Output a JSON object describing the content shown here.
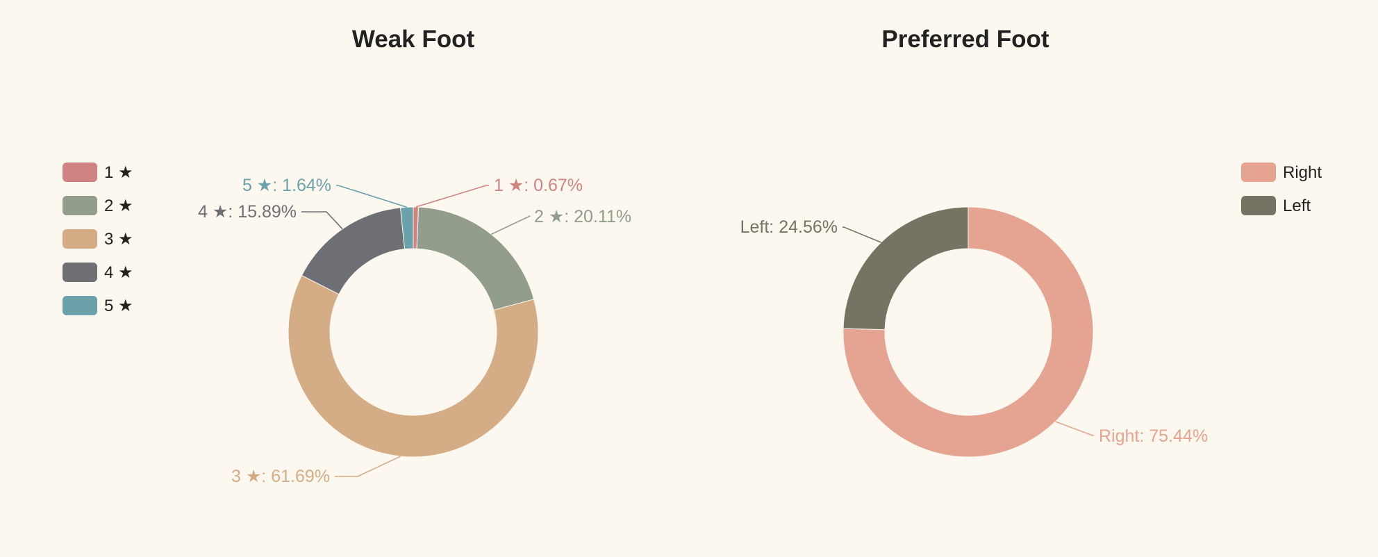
{
  "chart_data": [
    {
      "type": "pie",
      "title": "Weak Foot",
      "legend_position": "left",
      "categories": [
        "1 ★",
        "2 ★",
        "3 ★",
        "4 ★",
        "5 ★"
      ],
      "values": [
        0.67,
        20.11,
        61.69,
        15.89,
        1.64
      ],
      "unit": "%",
      "colors": [
        "#d18282",
        "#939d8b",
        "#d4ac86",
        "#6e6f75",
        "#6ba1aa"
      ],
      "labels": [
        "1 ★: 0.67%",
        "2 ★: 20.11%",
        "3 ★: 61.69%",
        "4 ★: 15.89%",
        "5 ★: 1.64%"
      ]
    },
    {
      "type": "pie",
      "title": "Preferred Foot",
      "legend_position": "top-right",
      "categories": [
        "Right",
        "Left"
      ],
      "values": [
        75.44,
        24.56
      ],
      "unit": "%",
      "colors": [
        "#e5a391",
        "#777362"
      ],
      "labels": [
        "Right: 75.44%",
        "Left: 24.56%"
      ]
    }
  ]
}
